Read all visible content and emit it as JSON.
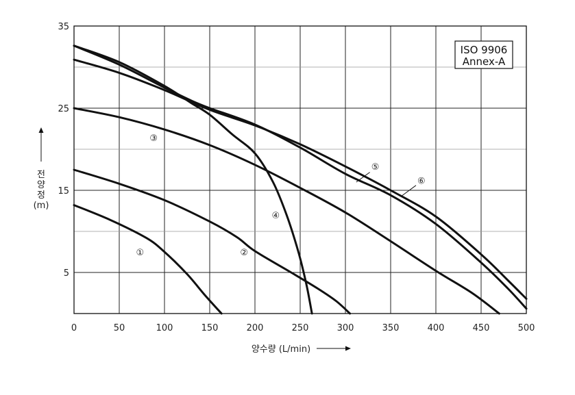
{
  "chart_data": {
    "type": "line",
    "title": "",
    "xlabel": "양수량 (L/min)",
    "ylabel": "전양정 (m)",
    "xlim": [
      0,
      500
    ],
    "ylim": [
      0,
      35
    ],
    "x_ticks": [
      0,
      50,
      100,
      150,
      200,
      250,
      300,
      350,
      400,
      450,
      500
    ],
    "y_ticks": [
      5,
      15,
      25,
      35
    ],
    "grid": true,
    "annotation_box": [
      "ISO 9906",
      "Annex-A"
    ],
    "series": [
      {
        "name": "①",
        "label_at": [
          73,
          7.5
        ],
        "points": [
          [
            0,
            13.2
          ],
          [
            40,
            11.4
          ],
          [
            80,
            9.2
          ],
          [
            100,
            7.5
          ],
          [
            125,
            4.8
          ],
          [
            145,
            2.2
          ],
          [
            163,
            0
          ]
        ]
      },
      {
        "name": "②",
        "label_at": [
          188,
          7.5
        ],
        "points": [
          [
            0,
            17.5
          ],
          [
            50,
            15.8
          ],
          [
            100,
            13.8
          ],
          [
            150,
            11.2
          ],
          [
            180,
            9.3
          ],
          [
            200,
            7.6
          ],
          [
            240,
            5.0
          ],
          [
            270,
            3.0
          ],
          [
            290,
            1.5
          ],
          [
            305,
            0
          ]
        ]
      },
      {
        "name": "③",
        "label_at": [
          88,
          21.4
        ],
        "points": [
          [
            0,
            25.0
          ],
          [
            50,
            23.9
          ],
          [
            100,
            22.4
          ],
          [
            150,
            20.5
          ],
          [
            200,
            18.1
          ],
          [
            250,
            15.3
          ],
          [
            300,
            12.3
          ],
          [
            350,
            8.8
          ],
          [
            400,
            5.2
          ],
          [
            440,
            2.5
          ],
          [
            470,
            0
          ]
        ]
      },
      {
        "name": "④",
        "label_at": [
          223,
          12.0
        ],
        "points": [
          [
            0,
            32.6
          ],
          [
            50,
            30.6
          ],
          [
            100,
            27.7
          ],
          [
            130,
            25.6
          ],
          [
            150,
            24.2
          ],
          [
            175,
            21.8
          ],
          [
            200,
            19.5
          ],
          [
            220,
            16.0
          ],
          [
            235,
            12.0
          ],
          [
            248,
            7.5
          ],
          [
            257,
            3.5
          ],
          [
            263,
            0
          ]
        ]
      },
      {
        "name": "⑤",
        "label_at": [
          333,
          17.9
        ],
        "points": [
          [
            0,
            32.6
          ],
          [
            50,
            30.3
          ],
          [
            100,
            27.5
          ],
          [
            130,
            25.9
          ],
          [
            150,
            25.0
          ],
          [
            200,
            23.0
          ],
          [
            250,
            20.2
          ],
          [
            300,
            17.0
          ],
          [
            350,
            14.4
          ],
          [
            400,
            10.9
          ],
          [
            450,
            6.2
          ],
          [
            480,
            3.0
          ],
          [
            500,
            0.6
          ]
        ]
      },
      {
        "name": "⑥",
        "label_at": [
          384,
          16.2
        ],
        "points": [
          [
            0,
            30.9
          ],
          [
            50,
            29.3
          ],
          [
            100,
            27.2
          ],
          [
            150,
            24.8
          ],
          [
            200,
            22.9
          ],
          [
            250,
            20.6
          ],
          [
            300,
            17.9
          ],
          [
            350,
            15.0
          ],
          [
            400,
            11.8
          ],
          [
            450,
            7.2
          ],
          [
            480,
            4.0
          ],
          [
            500,
            1.8
          ]
        ]
      }
    ]
  }
}
